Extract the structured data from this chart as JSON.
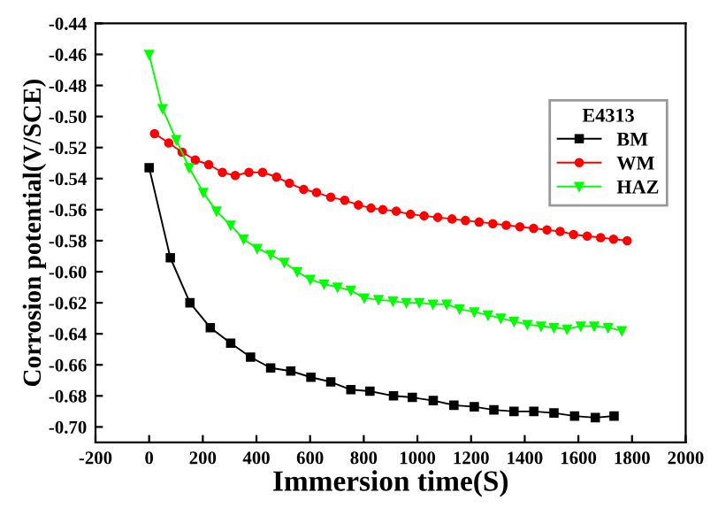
{
  "chart_data": {
    "type": "line",
    "xlabel": "Immersion time(S)",
    "ylabel": "Corrosion potential(V/SCE)",
    "legend_title": "E4313",
    "xlim": [
      -200,
      2000
    ],
    "xticks": [
      -200,
      0,
      200,
      400,
      600,
      800,
      1000,
      1200,
      1400,
      1600,
      1800,
      2000
    ],
    "ylim": [
      -0.71,
      -0.44
    ],
    "yticks": [
      {
        "value": -0.7,
        "label": "-0.70"
      },
      -0.68,
      -0.66,
      -0.64,
      -0.62,
      {
        "value": -0.6,
        "label": "-0.60"
      },
      -0.58,
      -0.56,
      -0.54,
      -0.52,
      {
        "value": -0.5,
        "label": "-0.50"
      },
      -0.48,
      -0.46,
      -0.44
    ],
    "legend": "top right",
    "grid": false,
    "series": [
      {
        "name": "BM",
        "color": "#000000",
        "marker": "square",
        "x": [
          0,
          79,
          152,
          228,
          304,
          378,
          453,
          528,
          603,
          677,
          752,
          823,
          911,
          981,
          1059,
          1136,
          1212,
          1285,
          1360,
          1434,
          1509,
          1586,
          1663,
          1733
        ],
        "values": [
          -0.533,
          -0.591,
          -0.62,
          -0.636,
          -0.646,
          -0.655,
          -0.662,
          -0.664,
          -0.668,
          -0.671,
          -0.676,
          -0.677,
          -0.68,
          -0.681,
          -0.683,
          -0.686,
          -0.687,
          -0.689,
          -0.69,
          -0.69,
          -0.691,
          -0.693,
          -0.694,
          -0.693
        ]
      },
      {
        "name": "WM",
        "color": "#ff0000",
        "marker": "circle",
        "x": [
          20,
          73,
          123,
          172,
          222,
          273,
          321,
          372,
          423,
          475,
          523,
          576,
          624,
          677,
          729,
          780,
          827,
          871,
          921,
          974,
          1025,
          1076,
          1129,
          1179,
          1230,
          1281,
          1331,
          1382,
          1433,
          1483,
          1532,
          1582,
          1633,
          1683,
          1731,
          1782
        ],
        "values": [
          -0.511,
          -0.517,
          -0.523,
          -0.528,
          -0.531,
          -0.536,
          -0.538,
          -0.536,
          -0.536,
          -0.539,
          -0.543,
          -0.547,
          -0.549,
          -0.552,
          -0.554,
          -0.557,
          -0.559,
          -0.56,
          -0.561,
          -0.563,
          -0.564,
          -0.565,
          -0.566,
          -0.567,
          -0.568,
          -0.569,
          -0.57,
          -0.571,
          -0.572,
          -0.573,
          -0.574,
          -0.576,
          -0.577,
          -0.578,
          -0.579,
          -0.58
        ]
      },
      {
        "name": "HAZ",
        "color": "#00ff00",
        "marker": "triangle",
        "x": [
          0,
          50,
          101,
          149,
          202,
          251,
          304,
          352,
          403,
          453,
          504,
          552,
          601,
          652,
          702,
          752,
          802,
          855,
          909,
          959,
          1007,
          1058,
          1109,
          1157,
          1212,
          1263,
          1311,
          1360,
          1410,
          1461,
          1509,
          1558,
          1609,
          1659,
          1711,
          1762
        ],
        "values": [
          -0.46,
          -0.495,
          -0.515,
          -0.533,
          -0.549,
          -0.561,
          -0.57,
          -0.579,
          -0.585,
          -0.589,
          -0.594,
          -0.6,
          -0.605,
          -0.608,
          -0.61,
          -0.612,
          -0.617,
          -0.618,
          -0.619,
          -0.62,
          -0.62,
          -0.621,
          -0.621,
          -0.624,
          -0.626,
          -0.628,
          -0.63,
          -0.632,
          -0.634,
          -0.635,
          -0.636,
          -0.637,
          -0.635,
          -0.635,
          -0.636,
          -0.638
        ]
      }
    ]
  }
}
